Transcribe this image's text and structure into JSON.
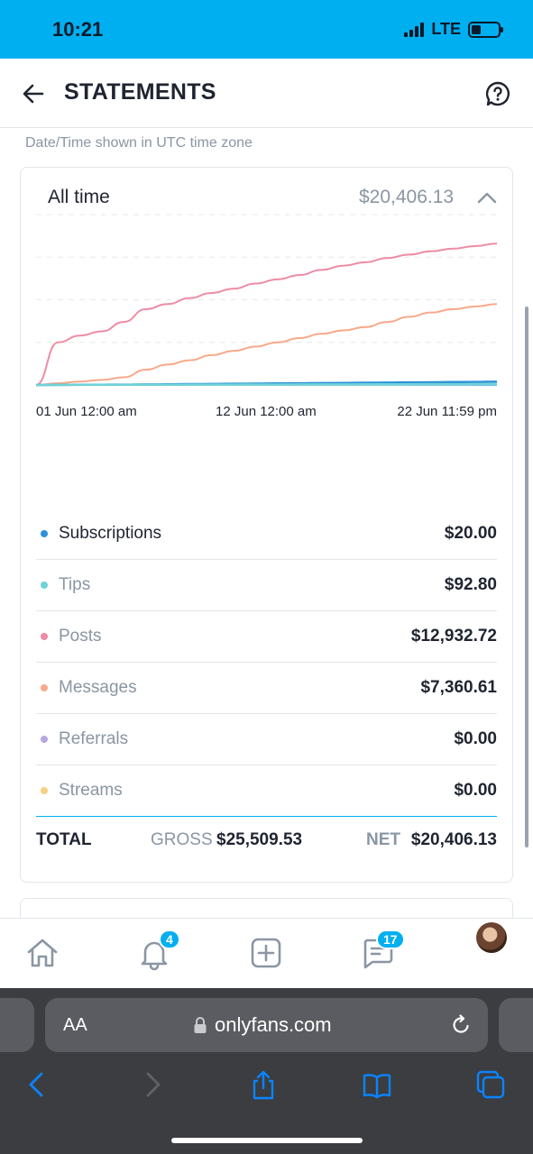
{
  "status_bar": {
    "time": "10:21",
    "network": "LTE"
  },
  "header": {
    "title": "STATEMENTS",
    "back_icon": "arrow-left-icon",
    "help_icon": "help-bubble-icon"
  },
  "timezone_note": "Date/Time shown in UTC time zone",
  "summary": {
    "period": "All time",
    "total": "$20,406.13",
    "breakdown": [
      {
        "label": "Subscriptions",
        "amount": "$20.00",
        "color": "#2d91d9"
      },
      {
        "label": "Tips",
        "amount": "$92.80",
        "color": "#6fd3d6"
      },
      {
        "label": "Posts",
        "amount": "$12,932.72",
        "color": "#ee8ca5"
      },
      {
        "label": "Messages",
        "amount": "$7,360.61",
        "color": "#f7a98b"
      },
      {
        "label": "Referrals",
        "amount": "$0.00",
        "color": "#b9a7e0"
      },
      {
        "label": "Streams",
        "amount": "$0.00",
        "color": "#f7cf82"
      }
    ],
    "totals": {
      "label": "TOTAL",
      "gross_label": "GROSS",
      "gross_value": "$25,509.53",
      "net_label": "NET",
      "net_value": "$20,406.13"
    }
  },
  "chart_data": {
    "type": "line",
    "x": [
      "01 Jun 12:00 am",
      "",
      "",
      "",
      "",
      "",
      "",
      "",
      "",
      "",
      "",
      "12 Jun 12:00 am",
      "",
      "",
      "",
      "",
      "",
      "",
      "",
      "",
      "",
      "22 Jun 11:59 pm"
    ],
    "x_tick_labels": [
      "01 Jun 12:00 am",
      "12 Jun 12:00 am",
      "22 Jun 11:59 pm"
    ],
    "series": [
      {
        "values": [
          0,
          5000,
          5800,
          6300,
          7400,
          8900,
          9500,
          10200,
          10800,
          11300,
          11900,
          12400,
          12900,
          13500,
          14000,
          14400,
          14900,
          15300,
          15700,
          16000,
          16300,
          16600
        ],
        "color": "#ee8ca5"
      },
      {
        "values": [
          0,
          200,
          400,
          600,
          900,
          1800,
          2400,
          2900,
          3500,
          4000,
          4500,
          5000,
          5500,
          6000,
          6400,
          6800,
          7400,
          8000,
          8500,
          8900,
          9200,
          9500
        ],
        "color": "#f7a98b"
      },
      {
        "values": [
          0,
          10,
          20,
          30,
          40,
          60,
          80,
          100,
          120,
          140,
          160,
          180,
          200,
          220,
          240,
          260,
          280,
          300,
          320,
          340,
          360,
          380
        ],
        "color": "#2d91d9"
      },
      {
        "values": [
          0,
          5,
          10,
          15,
          20,
          25,
          30,
          35,
          40,
          45,
          50,
          55,
          60,
          65,
          70,
          75,
          80,
          85,
          90,
          95,
          100,
          110
        ],
        "color": "#6fd3d6"
      }
    ],
    "ylim": [
      0,
      20000
    ],
    "grid": true,
    "legend": "none"
  },
  "bottom_nav": {
    "items": [
      {
        "name": "home",
        "icon": "home-icon"
      },
      {
        "name": "notifications",
        "icon": "bell-icon",
        "badge": "4"
      },
      {
        "name": "new-post",
        "icon": "plus-square-icon"
      },
      {
        "name": "messages",
        "icon": "chat-icon",
        "badge": "17"
      },
      {
        "name": "profile",
        "icon": "avatar"
      }
    ]
  },
  "browser": {
    "text_size_label": "AA",
    "url": "onlyfans.com"
  }
}
